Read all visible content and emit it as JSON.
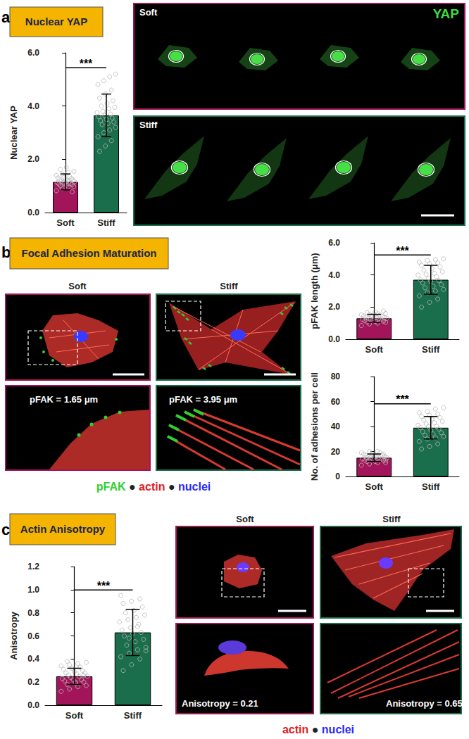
{
  "chart_data": [
    {
      "type": "bar",
      "categories": [
        "Soft",
        "Stiff"
      ],
      "values": [
        1.15,
        3.65
      ],
      "errors": [
        0.3,
        0.8
      ],
      "points": [
        [
          0.82,
          0.9,
          0.95,
          0.98,
          1.0,
          1.02,
          1.05,
          1.07,
          1.08,
          1.1,
          1.12,
          1.13,
          1.15,
          1.16,
          1.18,
          1.2,
          1.22,
          1.24,
          1.26,
          1.28,
          1.3,
          1.32,
          1.35,
          1.4,
          1.45,
          1.5,
          1.55,
          1.62,
          1.7,
          0.78
        ],
        [
          2.3,
          2.5,
          2.7,
          2.85,
          3.0,
          3.1,
          3.2,
          3.3,
          3.35,
          3.4,
          3.45,
          3.5,
          3.55,
          3.6,
          3.65,
          3.7,
          3.75,
          3.8,
          3.9,
          3.95,
          4.0,
          4.1,
          4.2,
          4.3,
          4.45,
          4.6,
          4.8,
          4.95,
          5.1,
          5.2
        ]
      ],
      "colors": [
        "#a3155a",
        "#1b6e4c"
      ],
      "ylabel": "Nuclear YAP",
      "ylim": [
        0,
        6
      ],
      "yticks": [
        {
          "value": 0,
          "label": "0.0"
        },
        {
          "value": 2,
          "label": "2.0"
        },
        {
          "value": 4,
          "label": "4.0"
        },
        {
          "value": 6,
          "label": "6.0"
        }
      ],
      "annotations": [
        "***"
      ],
      "grid": false
    },
    {
      "type": "bar",
      "categories": [
        "Soft",
        "Stiff"
      ],
      "values": [
        1.3,
        3.7
      ],
      "errors": [
        0.25,
        0.9
      ],
      "points": [
        [
          0.85,
          0.95,
          1.0,
          1.05,
          1.08,
          1.1,
          1.12,
          1.15,
          1.18,
          1.2,
          1.22,
          1.25,
          1.27,
          1.3,
          1.32,
          1.34,
          1.36,
          1.38,
          1.4,
          1.42,
          1.45,
          1.48,
          1.5,
          1.52,
          1.55,
          1.58,
          1.6,
          1.65,
          1.7,
          1.75
        ],
        [
          2.0,
          2.3,
          2.5,
          2.7,
          2.9,
          3.0,
          3.1,
          3.2,
          3.3,
          3.4,
          3.5,
          3.6,
          3.65,
          3.7,
          3.8,
          3.9,
          4.0,
          4.05,
          4.1,
          4.2,
          4.3,
          4.4,
          4.5,
          4.6,
          4.7,
          4.75,
          4.8,
          4.9,
          4.95,
          5.0
        ]
      ],
      "colors": [
        "#a3155a",
        "#1b6e4c"
      ],
      "ylabel": "pFAK length (μm)",
      "ylim": [
        0,
        6
      ],
      "yticks": [
        {
          "value": 0,
          "label": "0.0"
        },
        {
          "value": 2,
          "label": "2.0"
        },
        {
          "value": 4,
          "label": "4.0"
        },
        {
          "value": 6,
          "label": "6.0"
        }
      ],
      "annotations": [
        "***"
      ],
      "grid": false
    },
    {
      "type": "bar",
      "categories": [
        "Soft",
        "Stiff"
      ],
      "values": [
        15,
        39
      ],
      "errors": [
        3,
        9
      ],
      "points": [
        [
          9,
          10,
          11,
          11,
          12,
          12,
          13,
          13,
          14,
          14,
          14,
          15,
          15,
          15,
          16,
          16,
          16,
          17,
          17,
          17,
          18,
          18,
          19,
          19,
          20,
          20,
          13,
          15,
          16,
          18
        ],
        [
          22,
          24,
          26,
          28,
          30,
          31,
          32,
          33,
          34,
          35,
          36,
          37,
          38,
          39,
          40,
          40,
          41,
          42,
          43,
          44,
          45,
          46,
          47,
          48,
          49,
          50,
          51,
          52,
          54,
          55
        ]
      ],
      "colors": [
        "#a3155a",
        "#1b6e4c"
      ],
      "ylabel": "No. of adhesions per cell",
      "ylim": [
        0,
        80
      ],
      "yticks": [
        0,
        20,
        40,
        60,
        80
      ],
      "annotations": [
        "***"
      ],
      "grid": false
    },
    {
      "type": "bar",
      "categories": [
        "Soft",
        "Stiff"
      ],
      "values": [
        0.25,
        0.63
      ],
      "errors": [
        0.07,
        0.2
      ],
      "points": [
        [
          0.12,
          0.14,
          0.16,
          0.17,
          0.18,
          0.19,
          0.2,
          0.21,
          0.22,
          0.22,
          0.23,
          0.24,
          0.25,
          0.25,
          0.26,
          0.27,
          0.28,
          0.28,
          0.29,
          0.3,
          0.31,
          0.32,
          0.33,
          0.34,
          0.35,
          0.36,
          0.37,
          0.38,
          0.2,
          0.26
        ],
        [
          0.3,
          0.35,
          0.4,
          0.42,
          0.45,
          0.48,
          0.5,
          0.52,
          0.55,
          0.57,
          0.6,
          0.62,
          0.63,
          0.65,
          0.67,
          0.7,
          0.72,
          0.74,
          0.76,
          0.78,
          0.8,
          0.82,
          0.85,
          0.88,
          0.9,
          0.92,
          0.95,
          0.58,
          0.68,
          0.47
        ]
      ],
      "colors": [
        "#a3155a",
        "#1b6e4c"
      ],
      "ylabel": "Anisotropy",
      "ylim": [
        0,
        1.2
      ],
      "yticks": [
        {
          "value": 0,
          "label": "0.0"
        },
        0.2,
        0.4,
        0.6,
        0.8,
        {
          "value": 1,
          "label": "1.0"
        },
        1.2
      ],
      "annotations": [
        "***"
      ],
      "grid": false
    }
  ],
  "panels": [
    {
      "letter": "a",
      "title": "Nuclear YAP",
      "channel": "YAP",
      "images": [
        {
          "label": "Soft"
        },
        {
          "label": "Stiff"
        }
      ]
    },
    {
      "letter": "b",
      "title": "Focal Adhesion Maturation",
      "images": [
        {
          "label": "Soft",
          "inset_text": "pFAK = 1.65 μm"
        },
        {
          "label": "Stiff",
          "inset_text": "pFAK = 3.95 μm"
        }
      ],
      "stain_legend": [
        "pFAK",
        "actin",
        "nuclei"
      ],
      "separator": "●"
    },
    {
      "letter": "c",
      "title": "Actin Anisotropy",
      "images": [
        {
          "label": "Soft",
          "inset_text": "Anisotropy = 0.21"
        },
        {
          "label": "Stiff",
          "inset_text": "Anisotropy = 0.65"
        }
      ],
      "stain_legend": [
        "actin",
        "nuclei"
      ],
      "separator": "●"
    }
  ]
}
